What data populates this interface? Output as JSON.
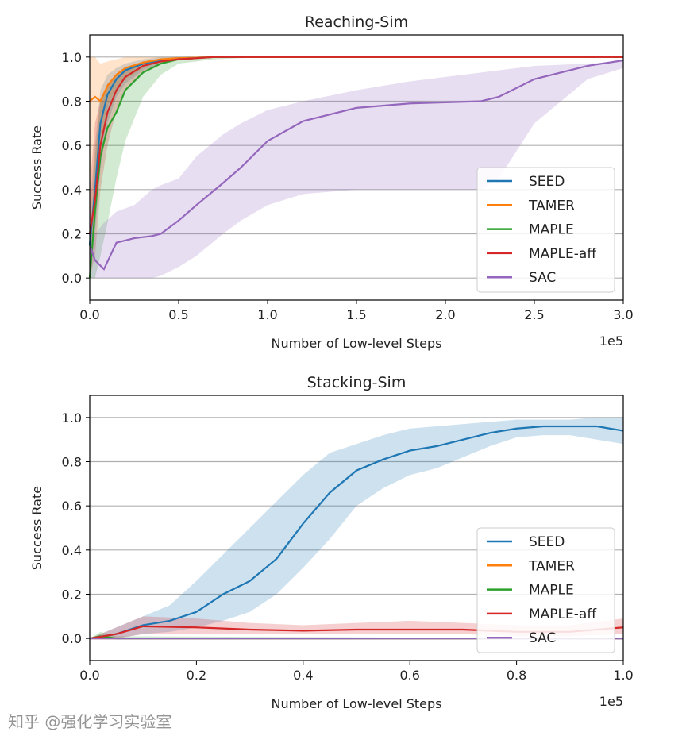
{
  "watermark": "知乎 @强化学习实验室",
  "chart_data": [
    {
      "type": "line",
      "title": "Reaching-Sim",
      "xlabel": "Number of Low-level Steps",
      "ylabel": "Success Rate",
      "x_offset_label": "1e5",
      "xlim": [
        0,
        3.0
      ],
      "ylim": [
        -0.1,
        1.1
      ],
      "xticks": [
        "0.0",
        "0.5",
        "1.0",
        "1.5",
        "2.0",
        "2.5",
        "3.0"
      ],
      "yticks": [
        "0.0",
        "0.2",
        "0.4",
        "0.6",
        "0.8",
        "1.0"
      ],
      "grid": "horizontal",
      "legend": "lower-right",
      "series": [
        {
          "name": "SEED",
          "color": "#1f77b4",
          "x": [
            0,
            0.03,
            0.06,
            0.1,
            0.15,
            0.2,
            0.3,
            0.4,
            0.5,
            0.7,
            1.0,
            3.0
          ],
          "y": [
            0.15,
            0.4,
            0.7,
            0.83,
            0.9,
            0.94,
            0.97,
            0.985,
            0.995,
            1,
            1,
            1
          ],
          "lower": [
            0,
            0.2,
            0.5,
            0.7,
            0.82,
            0.88,
            0.94,
            0.97,
            0.99,
            1,
            1,
            1
          ],
          "upper": [
            0.3,
            0.6,
            0.85,
            0.92,
            0.95,
            0.97,
            0.99,
            1,
            1,
            1,
            1,
            1
          ]
        },
        {
          "name": "TAMER",
          "color": "#ff7f0e",
          "x": [
            0,
            0.03,
            0.06,
            0.1,
            0.15,
            0.2,
            0.3,
            0.4,
            0.5,
            0.7,
            1.0,
            3.0
          ],
          "y": [
            0.8,
            0.82,
            0.8,
            0.87,
            0.92,
            0.95,
            0.975,
            0.99,
            0.995,
            1,
            1,
            1
          ],
          "lower": [
            0.1,
            0.3,
            0.6,
            0.78,
            0.86,
            0.9,
            0.95,
            0.98,
            0.99,
            1,
            1,
            1
          ],
          "upper": [
            1,
            1,
            0.97,
            0.98,
            0.99,
            1,
            1,
            1,
            1,
            1,
            1,
            1
          ]
        },
        {
          "name": "MAPLE",
          "color": "#2ca02c",
          "x": [
            0,
            0.03,
            0.06,
            0.1,
            0.15,
            0.2,
            0.3,
            0.4,
            0.5,
            0.7,
            1.0,
            3.0
          ],
          "y": [
            0,
            0.3,
            0.55,
            0.68,
            0.75,
            0.85,
            0.93,
            0.97,
            0.99,
            1,
            1,
            1
          ],
          "lower": [
            0,
            0,
            0.1,
            0.25,
            0.45,
            0.62,
            0.82,
            0.92,
            0.97,
            0.99,
            1,
            1
          ],
          "upper": [
            0.1,
            0.55,
            0.8,
            0.88,
            0.92,
            0.95,
            0.98,
            0.99,
            1,
            1,
            1,
            1
          ]
        },
        {
          "name": "MAPLE-aff",
          "color": "#d62728",
          "x": [
            0,
            0.03,
            0.06,
            0.1,
            0.15,
            0.2,
            0.3,
            0.4,
            0.5,
            0.7,
            1.0,
            3.0
          ],
          "y": [
            0.2,
            0.35,
            0.6,
            0.75,
            0.85,
            0.91,
            0.96,
            0.98,
            0.99,
            1,
            1,
            1
          ],
          "lower": [
            0,
            0.1,
            0.4,
            0.6,
            0.76,
            0.85,
            0.93,
            0.97,
            0.99,
            1,
            1,
            1
          ],
          "upper": [
            0.4,
            0.7,
            0.8,
            0.88,
            0.92,
            0.95,
            0.98,
            0.99,
            1,
            1,
            1,
            1
          ]
        },
        {
          "name": "SAC",
          "color": "#9467bd",
          "x": [
            0,
            0.03,
            0.08,
            0.15,
            0.25,
            0.35,
            0.4,
            0.5,
            0.6,
            0.75,
            0.85,
            1.0,
            1.2,
            1.5,
            1.8,
            2.2,
            2.3,
            2.5,
            2.8,
            3.0
          ],
          "y": [
            0.15,
            0.08,
            0.04,
            0.16,
            0.18,
            0.19,
            0.2,
            0.26,
            0.33,
            0.43,
            0.5,
            0.62,
            0.71,
            0.77,
            0.79,
            0.8,
            0.82,
            0.9,
            0.96,
            0.985
          ],
          "lower": [
            0,
            0,
            0,
            0,
            0,
            0,
            0.01,
            0.05,
            0.1,
            0.2,
            0.26,
            0.33,
            0.38,
            0.4,
            0.4,
            0.4,
            0.45,
            0.7,
            0.9,
            0.95
          ],
          "upper": [
            0.2,
            0.2,
            0.25,
            0.3,
            0.33,
            0.4,
            0.42,
            0.45,
            0.55,
            0.65,
            0.7,
            0.76,
            0.8,
            0.85,
            0.89,
            0.93,
            0.94,
            0.96,
            0.97,
            0.98
          ]
        }
      ]
    },
    {
      "type": "line",
      "title": "Stacking-Sim",
      "xlabel": "Number of Low-level Steps",
      "ylabel": "Success Rate",
      "x_offset_label": "1e5",
      "xlim": [
        0,
        1.0
      ],
      "ylim": [
        -0.1,
        1.1
      ],
      "xticks": [
        "0.0",
        "0.2",
        "0.4",
        "0.6",
        "0.8",
        "1.0"
      ],
      "yticks": [
        "0.0",
        "0.2",
        "0.4",
        "0.6",
        "0.8",
        "1.0"
      ],
      "grid": "horizontal",
      "legend": "lower-right",
      "series": [
        {
          "name": "SEED",
          "color": "#1f77b4",
          "x": [
            0,
            0.05,
            0.1,
            0.15,
            0.2,
            0.25,
            0.3,
            0.35,
            0.4,
            0.45,
            0.5,
            0.55,
            0.6,
            0.65,
            0.7,
            0.75,
            0.8,
            0.85,
            0.9,
            0.95,
            1.0
          ],
          "y": [
            0,
            0.02,
            0.06,
            0.08,
            0.12,
            0.2,
            0.26,
            0.36,
            0.52,
            0.66,
            0.76,
            0.81,
            0.85,
            0.87,
            0.9,
            0.93,
            0.95,
            0.96,
            0.96,
            0.96,
            0.94
          ],
          "lower": [
            0,
            0,
            0.02,
            0.03,
            0.05,
            0.08,
            0.12,
            0.2,
            0.32,
            0.45,
            0.6,
            0.68,
            0.74,
            0.77,
            0.82,
            0.87,
            0.91,
            0.92,
            0.92,
            0.9,
            0.88
          ],
          "upper": [
            0,
            0.05,
            0.1,
            0.15,
            0.26,
            0.38,
            0.5,
            0.62,
            0.74,
            0.84,
            0.88,
            0.92,
            0.95,
            0.96,
            0.97,
            0.98,
            0.99,
            0.99,
            0.99,
            1,
            1
          ]
        },
        {
          "name": "TAMER",
          "color": "#ff7f0e",
          "x": [
            0,
            1.0
          ],
          "y": [
            0,
            0
          ],
          "lower": [
            0,
            0
          ],
          "upper": [
            0,
            0
          ]
        },
        {
          "name": "MAPLE",
          "color": "#2ca02c",
          "x": [
            0,
            0.02,
            0.05,
            1.0
          ],
          "y": [
            0,
            0.01,
            0,
            0
          ],
          "lower": [
            0,
            0,
            0,
            0
          ],
          "upper": [
            0,
            0.03,
            0.01,
            0
          ]
        },
        {
          "name": "MAPLE-aff",
          "color": "#d62728",
          "x": [
            0,
            0.05,
            0.1,
            0.2,
            0.3,
            0.4,
            0.5,
            0.6,
            0.7,
            0.8,
            0.9,
            1.0
          ],
          "y": [
            0,
            0.02,
            0.055,
            0.05,
            0.04,
            0.035,
            0.04,
            0.04,
            0.04,
            0.03,
            0.03,
            0.05
          ],
          "lower": [
            0,
            0,
            0.02,
            0.02,
            0.02,
            0.02,
            0.02,
            0.02,
            0.02,
            0.01,
            0.01,
            0.02
          ],
          "upper": [
            0,
            0.05,
            0.1,
            0.09,
            0.07,
            0.06,
            0.07,
            0.08,
            0.07,
            0.06,
            0.06,
            0.09
          ]
        },
        {
          "name": "SAC",
          "color": "#9467bd",
          "x": [
            0,
            1.0
          ],
          "y": [
            0,
            0
          ],
          "lower": [
            0,
            0
          ],
          "upper": [
            0,
            0
          ]
        }
      ]
    }
  ]
}
